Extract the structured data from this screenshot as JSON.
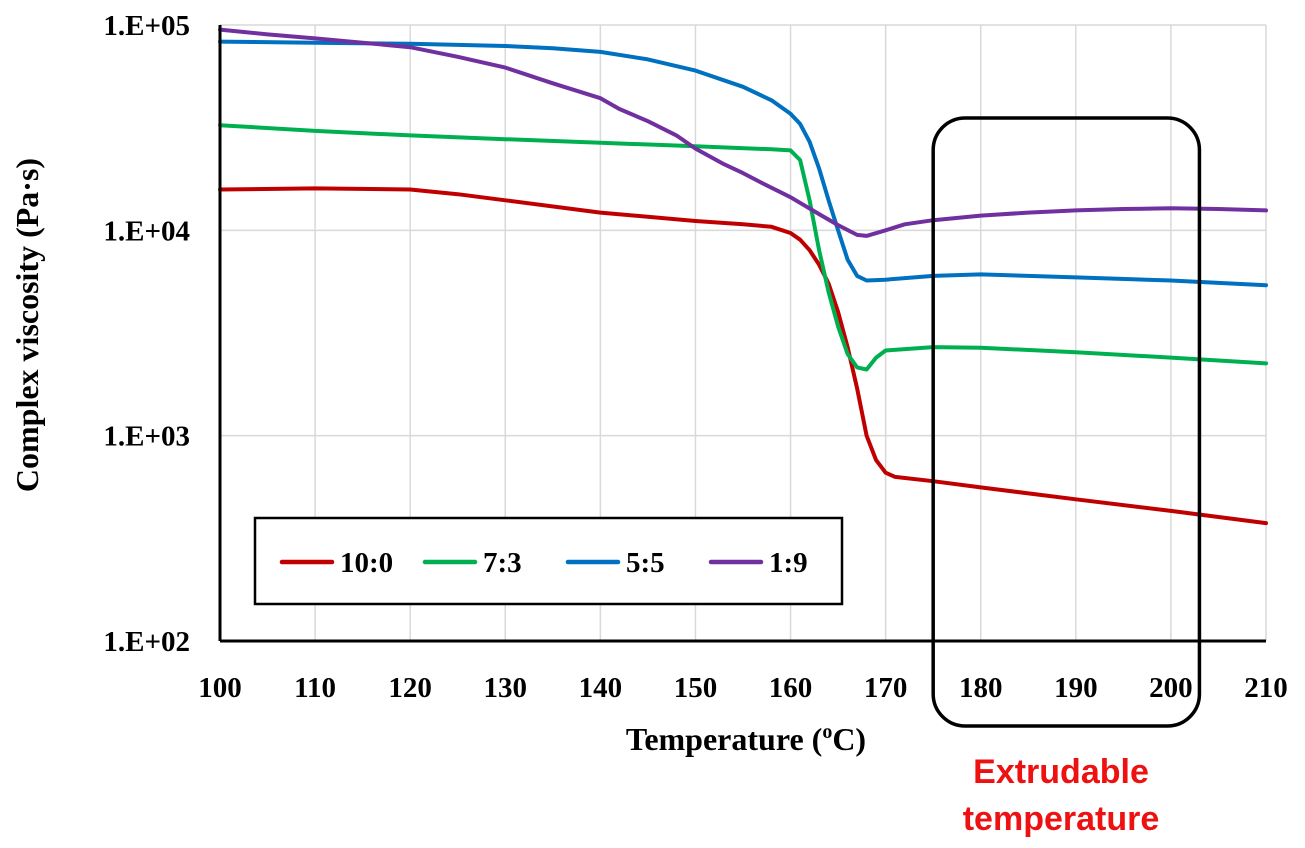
{
  "chart_data": {
    "type": "line",
    "xlabel": "Temperature (",
    "xlabel_sup": "o",
    "xlabel_unit": "C)",
    "ylabel": "Complex viscosity (Pa·s)",
    "xlim": [
      100,
      210
    ],
    "x_ticks": [
      100,
      110,
      120,
      130,
      140,
      150,
      160,
      170,
      180,
      190,
      200,
      210
    ],
    "x_tick_labels": [
      "100",
      "110",
      "120",
      "130",
      "140",
      "150",
      "160",
      "170",
      "180",
      "190",
      "200",
      "210"
    ],
    "y_scale": "log",
    "ylim": [
      100,
      100000
    ],
    "y_ticks": [
      100,
      1000,
      10000,
      100000
    ],
    "y_tick_labels": [
      "1.E+02",
      "1.E+03",
      "1.E+04",
      "1.E+05"
    ],
    "grid": "vertical",
    "legend_position": "bottom-left",
    "series": [
      {
        "name": "10:0",
        "color": "#c00000",
        "points": [
          [
            100,
            15800
          ],
          [
            110,
            16000
          ],
          [
            120,
            15800
          ],
          [
            125,
            15000
          ],
          [
            130,
            14000
          ],
          [
            140,
            12200
          ],
          [
            150,
            11100
          ],
          [
            155,
            10700
          ],
          [
            158,
            10400
          ],
          [
            160,
            9700
          ],
          [
            161,
            9000
          ],
          [
            162,
            8000
          ],
          [
            163,
            6800
          ],
          [
            164,
            5500
          ],
          [
            165,
            4000
          ],
          [
            166,
            2700
          ],
          [
            167,
            1700
          ],
          [
            168,
            1000
          ],
          [
            169,
            760
          ],
          [
            170,
            660
          ],
          [
            171,
            630
          ],
          [
            175,
            600
          ],
          [
            180,
            560
          ],
          [
            190,
            490
          ],
          [
            200,
            430
          ],
          [
            210,
            375
          ]
        ]
      },
      {
        "name": "7:3",
        "color": "#00b050",
        "points": [
          [
            100,
            32500
          ],
          [
            110,
            30500
          ],
          [
            120,
            29000
          ],
          [
            130,
            27800
          ],
          [
            140,
            26700
          ],
          [
            150,
            25700
          ],
          [
            158,
            24800
          ],
          [
            160,
            24500
          ],
          [
            161,
            22000
          ],
          [
            162,
            14000
          ],
          [
            163,
            8000
          ],
          [
            164,
            5000
          ],
          [
            165,
            3400
          ],
          [
            166,
            2500
          ],
          [
            167,
            2150
          ],
          [
            168,
            2100
          ],
          [
            169,
            2400
          ],
          [
            170,
            2600
          ],
          [
            175,
            2700
          ],
          [
            180,
            2680
          ],
          [
            190,
            2550
          ],
          [
            200,
            2400
          ],
          [
            210,
            2250
          ]
        ]
      },
      {
        "name": "5:5",
        "color": "#0070c0",
        "points": [
          [
            100,
            83000
          ],
          [
            110,
            82000
          ],
          [
            120,
            81000
          ],
          [
            130,
            79000
          ],
          [
            135,
            77000
          ],
          [
            140,
            74000
          ],
          [
            145,
            68000
          ],
          [
            150,
            60000
          ],
          [
            155,
            50000
          ],
          [
            158,
            43000
          ],
          [
            160,
            37000
          ],
          [
            161,
            33000
          ],
          [
            162,
            27000
          ],
          [
            163,
            20000
          ],
          [
            164,
            14000
          ],
          [
            165,
            10000
          ],
          [
            166,
            7200
          ],
          [
            167,
            6000
          ],
          [
            168,
            5700
          ],
          [
            170,
            5750
          ],
          [
            175,
            6000
          ],
          [
            180,
            6100
          ],
          [
            190,
            5900
          ],
          [
            200,
            5700
          ],
          [
            210,
            5400
          ]
        ]
      },
      {
        "name": "1:9",
        "color": "#7030a0",
        "points": [
          [
            100,
            95000
          ],
          [
            105,
            90000
          ],
          [
            110,
            86000
          ],
          [
            115,
            82000
          ],
          [
            120,
            78000
          ],
          [
            125,
            70000
          ],
          [
            130,
            62000
          ],
          [
            135,
            52000
          ],
          [
            140,
            44000
          ],
          [
            142,
            39000
          ],
          [
            145,
            34000
          ],
          [
            148,
            29000
          ],
          [
            150,
            25000
          ],
          [
            153,
            21000
          ],
          [
            155,
            19000
          ],
          [
            157,
            17000
          ],
          [
            160,
            14500
          ],
          [
            163,
            12000
          ],
          [
            165,
            10600
          ],
          [
            167,
            9500
          ],
          [
            168,
            9400
          ],
          [
            170,
            10000
          ],
          [
            172,
            10700
          ],
          [
            175,
            11200
          ],
          [
            180,
            11800
          ],
          [
            185,
            12200
          ],
          [
            190,
            12500
          ],
          [
            195,
            12700
          ],
          [
            200,
            12800
          ],
          [
            205,
            12700
          ],
          [
            210,
            12500
          ]
        ]
      }
    ],
    "annotation": {
      "line1": "Extrudable",
      "line2": "temperature",
      "color": "#ee1111",
      "x_range": [
        175,
        203
      ]
    }
  }
}
